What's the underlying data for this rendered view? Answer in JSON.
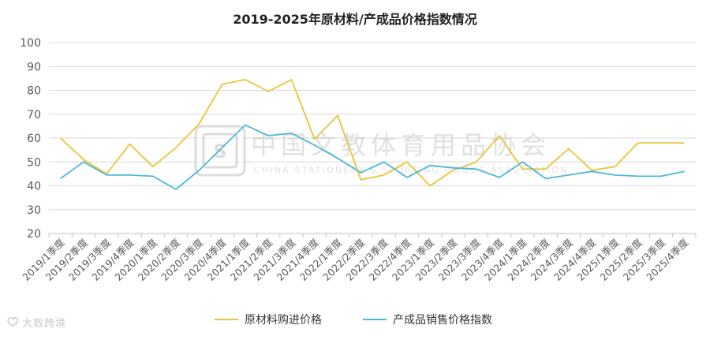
{
  "chart_data": {
    "type": "line",
    "title": "2019-2025年原材料/产成品价格指数情况",
    "xlabel": "",
    "ylabel": "",
    "ylim": [
      20,
      100
    ],
    "yticks": [
      20,
      30,
      40,
      50,
      60,
      70,
      80,
      90,
      100
    ],
    "grid": true,
    "legend_position": "bottom",
    "categories": [
      "2019/1季度",
      "2019/2季度",
      "2019/3季度",
      "2019/4季度",
      "2020/1季度",
      "2020/2季度",
      "2020/3季度",
      "2020/4季度",
      "2021/1季度",
      "2021/2季度",
      "2021/3季度",
      "2021/4季度",
      "2022/1季度",
      "2022/2季度",
      "2022/3季度",
      "2022/4季度",
      "2023/1季度",
      "2023/2季度",
      "2023/3季度",
      "2023/4季度",
      "2024/1季度",
      "2024/2季度",
      "2024/3季度",
      "2024/4季度",
      "2025/1季度",
      "2025/2季度",
      "2025/3季度",
      "2025/4季度"
    ],
    "series": [
      {
        "name": "原材料购进价格",
        "color": "#e8c53a",
        "values": [
          60,
          51,
          45,
          57.5,
          48,
          56,
          66,
          82.5,
          84.5,
          79.5,
          84.5,
          59.5,
          69.5,
          42.5,
          44.5,
          50,
          40,
          46.5,
          50,
          61,
          47,
          47,
          55.5,
          46.5,
          48,
          58,
          58,
          58
        ]
      },
      {
        "name": "产成品销售价格指数",
        "color": "#4db8d6",
        "values": [
          43,
          50,
          44.5,
          44.5,
          44,
          38.5,
          46.5,
          56,
          65.5,
          61,
          62,
          57,
          51.5,
          45.5,
          50,
          43.5,
          48.5,
          47.5,
          47,
          43.5,
          50,
          43,
          44.5,
          46,
          44.5,
          44,
          44,
          46
        ]
      }
    ]
  },
  "watermark": {
    "text_cn": "中国文教体育用品协会",
    "text_en": "CHINA STATIONERY & SPORTING GOODS ASSOCIATION"
  },
  "brand": {
    "text": "大数跨境"
  }
}
